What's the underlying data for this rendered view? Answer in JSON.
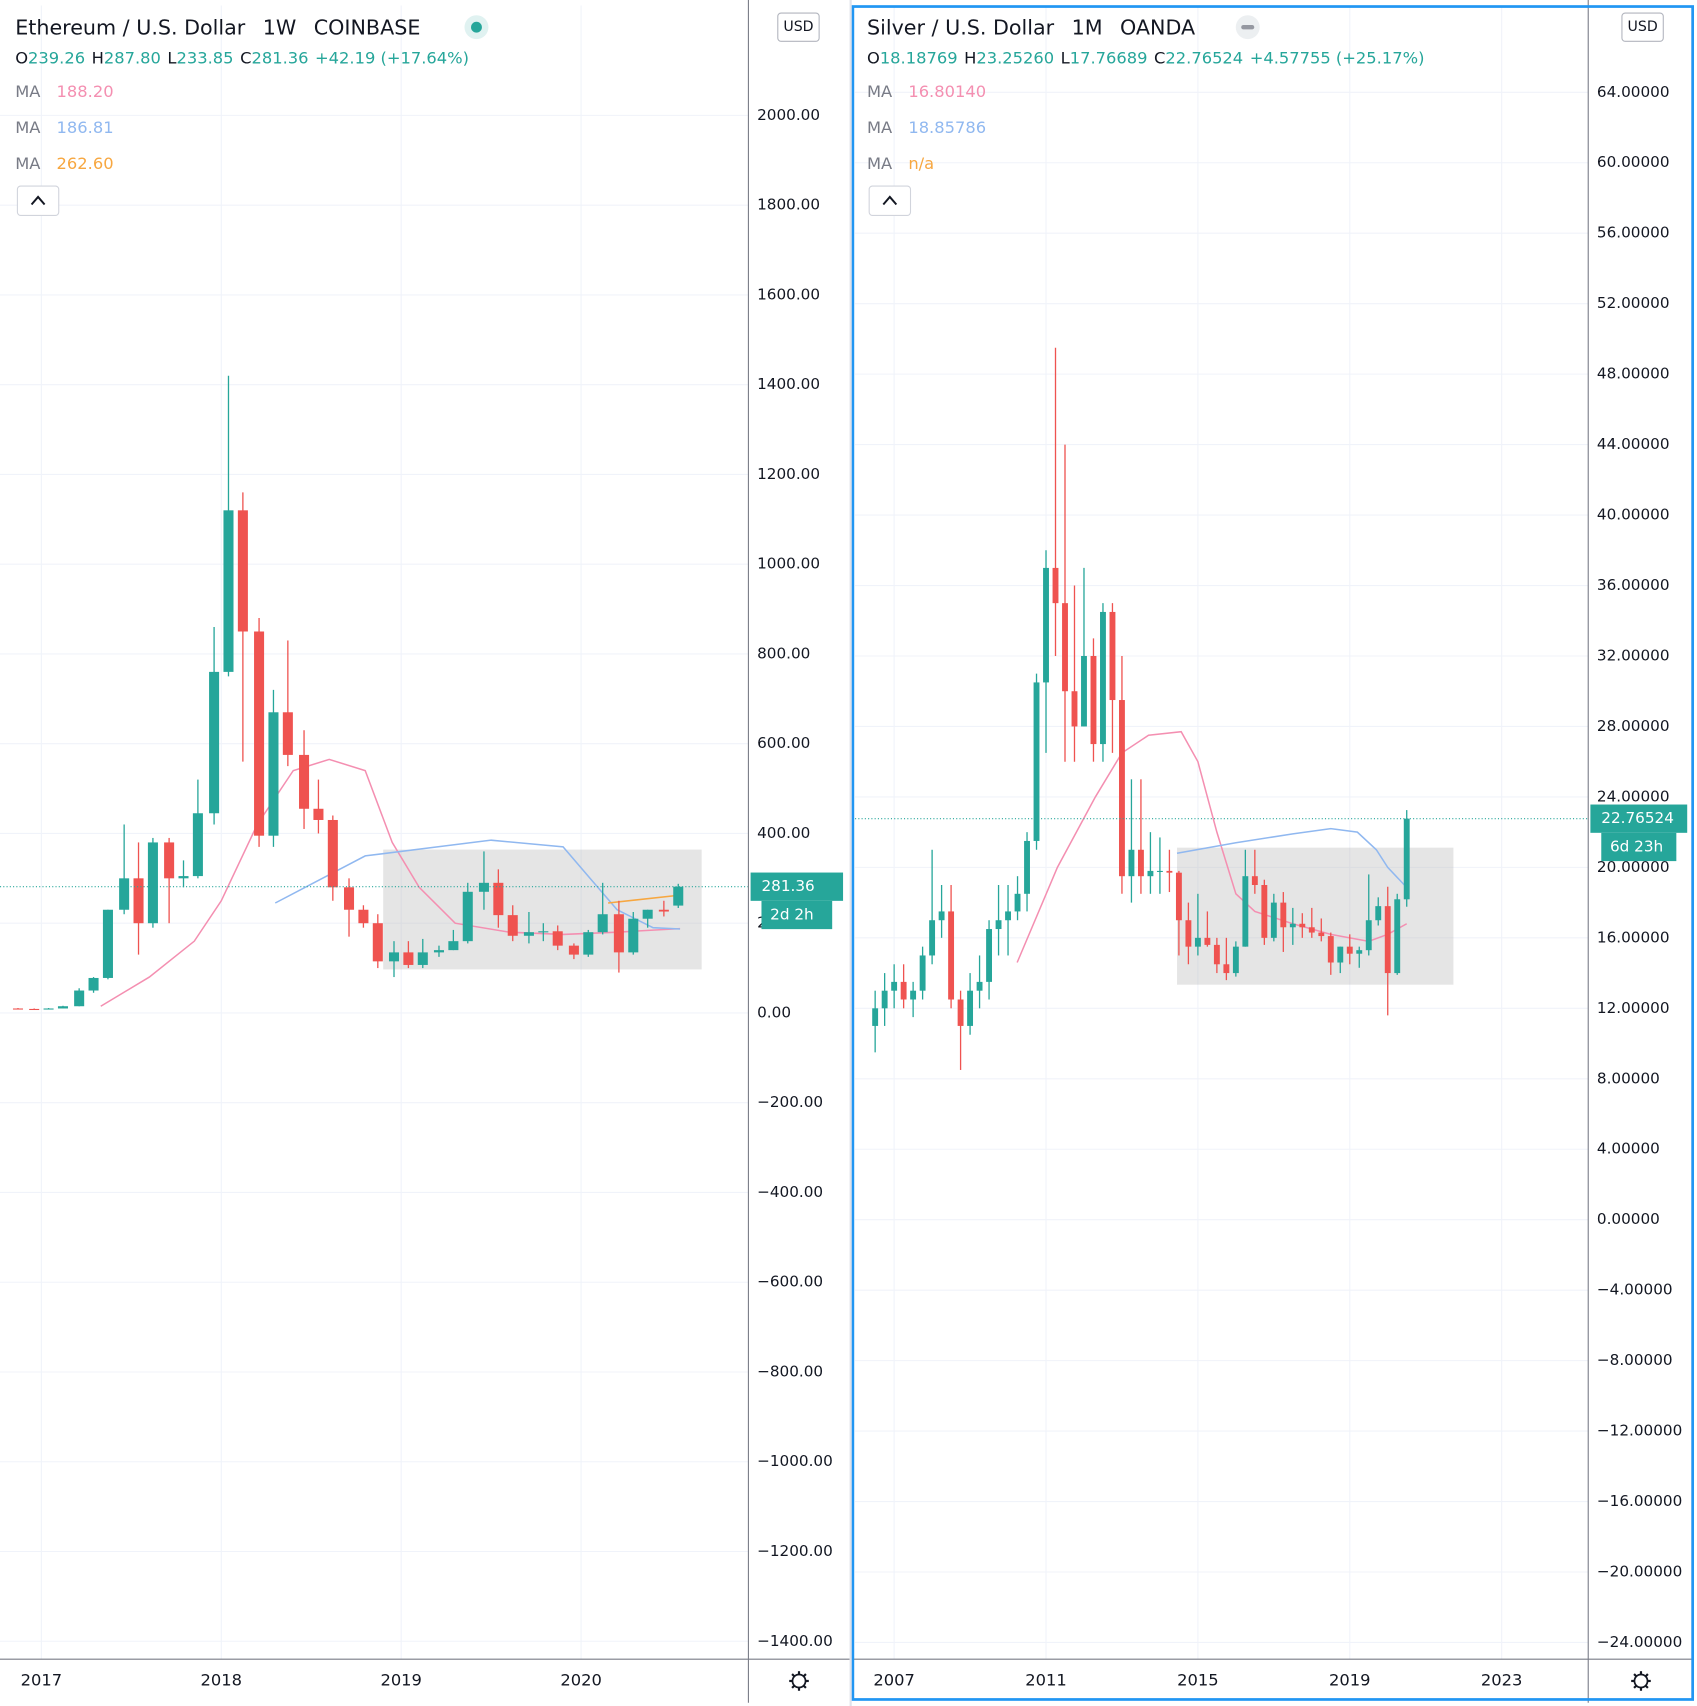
{
  "chart_data": [
    {
      "type": "candlestick",
      "title": "Ethereum / U.S. Dollar",
      "interval": "1W",
      "exchange": "COINBASE",
      "currency": "USD",
      "ohlc": [
        {
          "key": "O",
          "value": "239.26"
        },
        {
          "key": "H",
          "value": "287.80"
        },
        {
          "key": "L",
          "value": "233.85"
        },
        {
          "key": "C",
          "value": "281.36"
        }
      ],
      "change": "+42.19 (+17.64%)",
      "x": [
        2016.87,
        2016.96,
        2017.04,
        2017.12,
        2017.21,
        2017.29,
        2017.37,
        2017.46,
        2017.54,
        2017.62,
        2017.71,
        2017.79,
        2017.87,
        2017.96,
        2018.04,
        2018.12,
        2018.21,
        2018.29,
        2018.37,
        2018.46,
        2018.54,
        2018.62,
        2018.71,
        2018.79,
        2018.87,
        2018.96,
        2019.04,
        2019.12,
        2019.21,
        2019.29,
        2019.37,
        2019.46,
        2019.54,
        2019.62,
        2019.71,
        2019.79,
        2019.87,
        2019.96,
        2020.04,
        2020.12,
        2020.21,
        2020.29,
        2020.37,
        2020.46,
        2020.54
      ],
      "open": [
        10,
        9,
        8,
        10,
        15,
        50,
        78,
        230,
        300,
        200,
        380,
        300,
        305,
        445,
        760,
        1120,
        850,
        395,
        670,
        575,
        455,
        430,
        280,
        230,
        200,
        115,
        135,
        107,
        135,
        140,
        160,
        270,
        290,
        218,
        172,
        180,
        182,
        150,
        130,
        180,
        220,
        135,
        210,
        230,
        239.26
      ],
      "high": [
        11,
        10,
        11,
        16,
        55,
        80,
        230,
        420,
        380,
        390,
        390,
        340,
        520,
        860,
        1420,
        1160,
        880,
        720,
        830,
        630,
        520,
        440,
        300,
        240,
        220,
        160,
        160,
        165,
        150,
        185,
        290,
        360,
        320,
        240,
        225,
        200,
        195,
        155,
        185,
        290,
        250,
        225,
        230,
        250,
        287.8
      ],
      "low": [
        8,
        7,
        8,
        10,
        15,
        45,
        75,
        220,
        130,
        190,
        200,
        280,
        300,
        420,
        750,
        560,
        370,
        370,
        550,
        410,
        400,
        250,
        170,
        190,
        100,
        80,
        100,
        100,
        125,
        140,
        155,
        230,
        190,
        160,
        155,
        160,
        140,
        120,
        125,
        175,
        90,
        130,
        190,
        215,
        233.85
      ],
      "close": [
        9,
        8,
        10,
        15,
        50,
        78,
        230,
        300,
        200,
        380,
        300,
        305,
        445,
        760,
        1120,
        850,
        395,
        670,
        575,
        455,
        430,
        280,
        230,
        200,
        115,
        135,
        107,
        135,
        140,
        160,
        270,
        290,
        218,
        172,
        180,
        182,
        150,
        130,
        180,
        220,
        135,
        210,
        230,
        226,
        281.36
      ],
      "series": [
        {
          "name": "MA",
          "color": "#f48fb1",
          "value_label": "188.20",
          "x": [
            2017.33,
            2017.6,
            2017.85,
            2018.0,
            2018.2,
            2018.4,
            2018.6,
            2018.8,
            2018.95,
            2019.1,
            2019.3,
            2019.6,
            2019.9,
            2020.2,
            2020.55
          ],
          "values": [
            15,
            80,
            160,
            250,
            420,
            540,
            565,
            540,
            380,
            280,
            200,
            180,
            175,
            180,
            188
          ]
        },
        {
          "name": "MA",
          "color": "#90b8f0",
          "value_label": "186.81",
          "x": [
            2018.3,
            2018.8,
            2019.3,
            2019.5,
            2019.9,
            2020.05,
            2020.2,
            2020.4,
            2020.55
          ],
          "values": [
            245,
            350,
            375,
            385,
            370,
            300,
            230,
            190,
            187
          ]
        },
        {
          "name": "MA",
          "color": "#f7a740",
          "value_label": "262.60",
          "x": [
            2020.15,
            2020.55
          ],
          "values": [
            245,
            262.6
          ]
        }
      ],
      "box": {
        "x": [
          2018.9,
          2020.67
        ],
        "y": [
          97,
          364
        ]
      },
      "price_line": 281.36,
      "countdown": "2d 2h",
      "xlim": [
        2016.77,
        2020.93
      ],
      "xticks": [
        2017,
        2018,
        2019,
        2020
      ],
      "ylim": [
        -1440,
        2245
      ],
      "yticks": [
        {
          "value": -1400,
          "label": "−1400.00"
        },
        {
          "value": -1200,
          "label": "−1200.00"
        },
        {
          "value": -1000,
          "label": "−1000.00"
        },
        {
          "value": -800,
          "label": "−800.00"
        },
        {
          "value": -600,
          "label": "−600.00"
        },
        {
          "value": -400,
          "label": "−400.00"
        },
        {
          "value": -200,
          "label": "−200.00"
        },
        {
          "value": 0,
          "label": "0.00"
        },
        {
          "value": 200,
          "label": "200.00"
        },
        {
          "value": 400,
          "label": "400.00"
        },
        {
          "value": 600,
          "label": "600.00"
        },
        {
          "value": 800,
          "label": "800.00"
        },
        {
          "value": 1000,
          "label": "1000.00"
        },
        {
          "value": 1200,
          "label": "1200.00"
        },
        {
          "value": 1400,
          "label": "1400.00"
        },
        {
          "value": 1600,
          "label": "1600.00"
        },
        {
          "value": 1800,
          "label": "1800.00"
        },
        {
          "value": 2000,
          "label": "2000.00"
        }
      ],
      "grid": true
    },
    {
      "type": "candlestick",
      "title": "Silver / U.S. Dollar",
      "interval": "1M",
      "exchange": "OANDA",
      "currency": "USD",
      "ohlc": [
        {
          "key": "O",
          "value": "18.18769"
        },
        {
          "key": "H",
          "value": "23.25260"
        },
        {
          "key": "L",
          "value": "17.76689"
        },
        {
          "key": "C",
          "value": "22.76524"
        }
      ],
      "change": "+4.57755 (+25.17%)",
      "x": [
        2006.5,
        2006.75,
        2007.0,
        2007.25,
        2007.5,
        2007.75,
        2008.0,
        2008.25,
        2008.5,
        2008.75,
        2009.0,
        2009.25,
        2009.5,
        2009.75,
        2010.0,
        2010.25,
        2010.5,
        2010.75,
        2011.0,
        2011.25,
        2011.5,
        2011.75,
        2012.0,
        2012.25,
        2012.5,
        2012.75,
        2013.0,
        2013.25,
        2013.5,
        2013.75,
        2014.0,
        2014.25,
        2014.5,
        2014.75,
        2015.0,
        2015.25,
        2015.5,
        2015.75,
        2016.0,
        2016.25,
        2016.5,
        2016.75,
        2017.0,
        2017.25,
        2017.5,
        2017.75,
        2018.0,
        2018.25,
        2018.5,
        2018.75,
        2019.0,
        2019.25,
        2019.5,
        2019.75,
        2020.0,
        2020.25,
        2020.5
      ],
      "open": [
        11,
        12,
        13,
        13.5,
        12.5,
        13,
        15,
        17,
        17.5,
        12.5,
        11,
        13,
        13.5,
        16.5,
        17,
        17.5,
        18.5,
        21.5,
        30.5,
        37,
        35,
        30,
        28,
        32,
        27,
        34.5,
        29.5,
        19.5,
        21,
        19.5,
        19.8,
        19.8,
        19.7,
        17,
        15.5,
        16,
        15.6,
        14.5,
        14,
        15.5,
        19.5,
        19,
        16,
        18,
        16.6,
        16.8,
        16.6,
        16.3,
        16.1,
        14.6,
        15.5,
        15.1,
        15.3,
        17,
        17.8,
        14,
        18.18769
      ],
      "high": [
        13,
        14,
        14.5,
        14.5,
        13.5,
        15.5,
        21,
        19,
        19,
        13,
        14,
        15,
        17,
        19,
        19,
        19.5,
        22,
        31,
        38,
        49.5,
        44,
        36,
        37,
        33,
        35,
        35,
        32,
        25,
        25,
        22,
        21.7,
        21,
        19.8,
        18,
        18.5,
        17.5,
        16,
        16,
        15.8,
        21,
        21,
        19.3,
        18.5,
        18.6,
        17.7,
        17.4,
        17.7,
        17.1,
        16.3,
        15.5,
        16.2,
        15.5,
        19.6,
        18.3,
        18.9,
        18.5,
        23.2526
      ],
      "low": [
        9.5,
        11,
        12,
        12,
        11.5,
        12.5,
        14.5,
        16,
        12,
        8.5,
        10.5,
        12,
        12.5,
        15,
        15,
        17,
        17.5,
        21,
        26.5,
        32,
        26,
        26,
        28,
        26,
        26,
        26.5,
        18.5,
        18,
        18.5,
        18.5,
        18.5,
        18.6,
        15,
        14.5,
        15,
        15.5,
        14,
        13.6,
        13.8,
        15.5,
        18.5,
        15.6,
        15.8,
        15.2,
        15.6,
        16,
        16,
        15.8,
        13.9,
        14,
        14.5,
        14.3,
        15,
        16.7,
        11.6,
        13.9,
        17.76689
      ],
      "close": [
        12,
        13,
        13.5,
        12.5,
        13,
        15,
        17,
        17.5,
        12.5,
        11,
        13,
        13.5,
        16.5,
        17,
        17.5,
        18.5,
        21.5,
        30.5,
        37,
        35,
        30,
        28,
        32,
        27,
        34.5,
        29.5,
        19.5,
        21,
        19.5,
        19.8,
        19.8,
        19.7,
        17,
        15.5,
        16,
        15.6,
        14.5,
        14,
        15.5,
        19.5,
        19,
        16,
        18,
        16.6,
        16.8,
        16.6,
        16.3,
        16.1,
        14.6,
        15.5,
        15.1,
        15.3,
        17,
        17.8,
        14,
        18.19,
        22.76524
      ],
      "series": [
        {
          "name": "MA",
          "color": "#f48fb1",
          "value_label": "16.80140",
          "x": [
            2010.24,
            2011.3,
            2012.3,
            2013.0,
            2013.7,
            2014.56,
            2015.0,
            2015.5,
            2016.0,
            2016.5,
            2017.5,
            2018.5,
            2019.5,
            2020.0,
            2020.5
          ],
          "values": [
            14.6,
            20,
            24,
            26.5,
            27.5,
            27.7,
            26,
            22,
            18.5,
            17.5,
            16.8,
            16.2,
            15.8,
            16.2,
            16.8
          ]
        },
        {
          "name": "MA",
          "color": "#90b8f0",
          "value_label": "18.85786",
          "x": [
            2014.45,
            2016.0,
            2017.5,
            2018.5,
            2019.2,
            2019.7,
            2020.0,
            2020.5
          ],
          "values": [
            20.8,
            21.4,
            21.9,
            22.2,
            22.0,
            21,
            20,
            18.86
          ]
        },
        {
          "name": "MA",
          "color": "#f7a740",
          "value_label": "n/a",
          "x": [],
          "values": []
        }
      ],
      "box": {
        "x": [
          2014.45,
          2021.73
        ],
        "y": [
          13.34,
          21.12
        ]
      },
      "price_line": 22.76524,
      "countdown": "6d 23h",
      "xlim": [
        2005.97,
        2025.28
      ],
      "xticks": [
        2007,
        2011,
        2015,
        2019,
        2023
      ],
      "ylim": [
        -24.95,
        68.93
      ],
      "yticks": [
        {
          "value": -24,
          "label": "−24.00000"
        },
        {
          "value": -20,
          "label": "−20.00000"
        },
        {
          "value": -16,
          "label": "−16.00000"
        },
        {
          "value": -12,
          "label": "−12.00000"
        },
        {
          "value": -8,
          "label": "−8.00000"
        },
        {
          "value": -4,
          "label": "−4.00000"
        },
        {
          "value": 0,
          "label": "0.00000"
        },
        {
          "value": 4,
          "label": "4.00000"
        },
        {
          "value": 8,
          "label": "8.00000"
        },
        {
          "value": 12,
          "label": "12.00000"
        },
        {
          "value": 16,
          "label": "16.00000"
        },
        {
          "value": 20,
          "label": "20.00000"
        },
        {
          "value": 24,
          "label": "24.00000"
        },
        {
          "value": 28,
          "label": "28.00000"
        },
        {
          "value": 32,
          "label": "32.00000"
        },
        {
          "value": 36,
          "label": "36.00000"
        },
        {
          "value": 40,
          "label": "40.00000"
        },
        {
          "value": 44,
          "label": "44.00000"
        },
        {
          "value": 48,
          "label": "48.00000"
        },
        {
          "value": 52,
          "label": "52.00000"
        },
        {
          "value": 56,
          "label": "56.00000"
        },
        {
          "value": 60,
          "label": "60.00000"
        },
        {
          "value": 64,
          "label": "64.00000"
        }
      ],
      "grid": true
    }
  ]
}
